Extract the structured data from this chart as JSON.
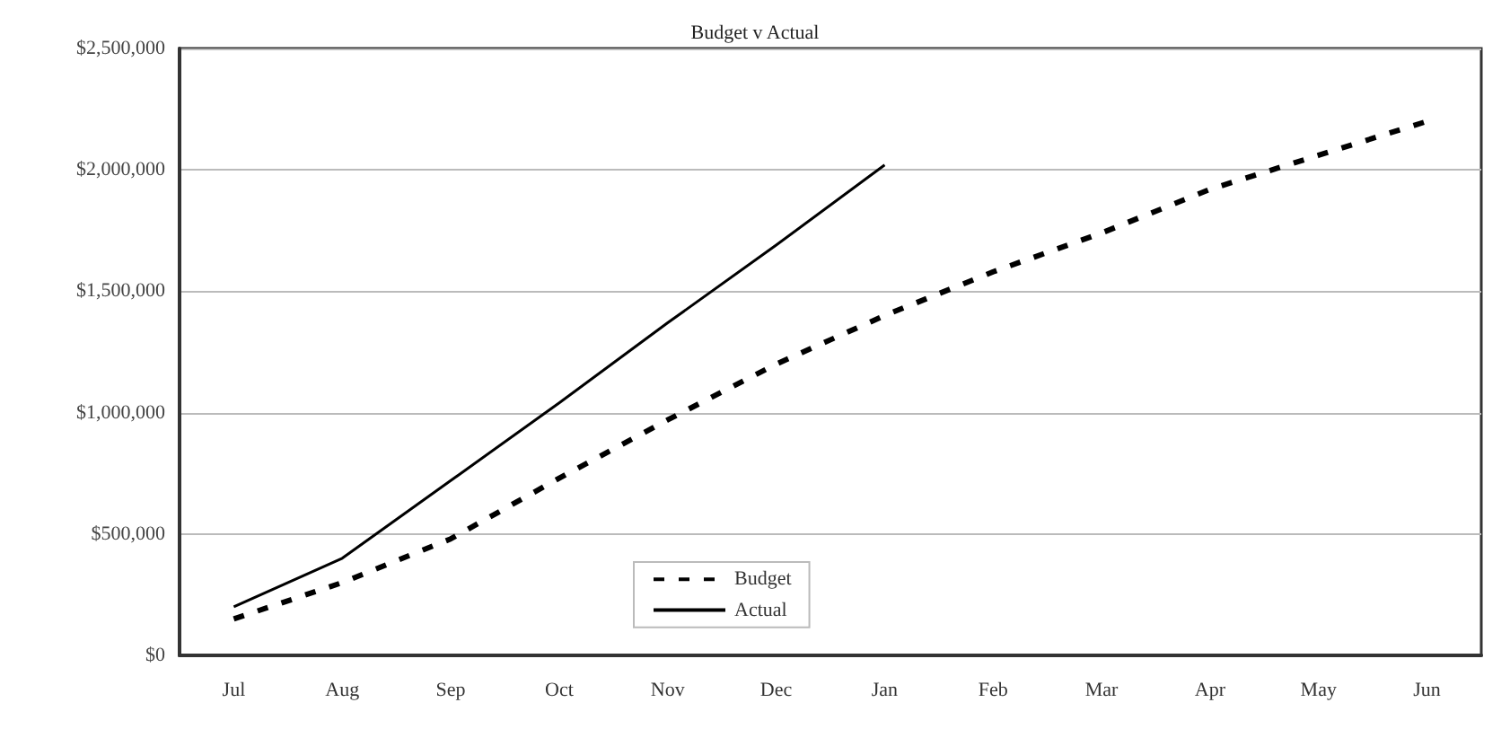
{
  "chart_data": {
    "type": "line",
    "title": "Budget v Actual",
    "categories": [
      "Jul",
      "Aug",
      "Sep",
      "Oct",
      "Nov",
      "Dec",
      "Jan",
      "Feb",
      "Mar",
      "Apr",
      "May",
      "Jun"
    ],
    "series": [
      {
        "name": "Budget",
        "color": "#000000",
        "line_style": "dashed",
        "values": [
          150000,
          300000,
          480000,
          730000,
          970000,
          1200000,
          1400000,
          1580000,
          1740000,
          1920000,
          2060000,
          2200000
        ]
      },
      {
        "name": "Actual",
        "color": "#000000",
        "line_style": "solid",
        "values": [
          200000,
          400000,
          720000,
          1040000,
          1370000,
          1690000,
          2020000,
          null,
          null,
          null,
          null,
          null
        ]
      }
    ],
    "ylim": [
      0,
      2500000
    ],
    "yticks": [
      {
        "value": 0,
        "label": "$0"
      },
      {
        "value": 500000,
        "label": "$500,000"
      },
      {
        "value": 1000000,
        "label": "$1,000,000"
      },
      {
        "value": 1500000,
        "label": "$1,500,000"
      },
      {
        "value": 2000000,
        "label": "$2,000,000"
      },
      {
        "value": 2500000,
        "label": "$2,500,000"
      }
    ],
    "grid": "y",
    "legend": "bottom left",
    "marker": "none"
  }
}
